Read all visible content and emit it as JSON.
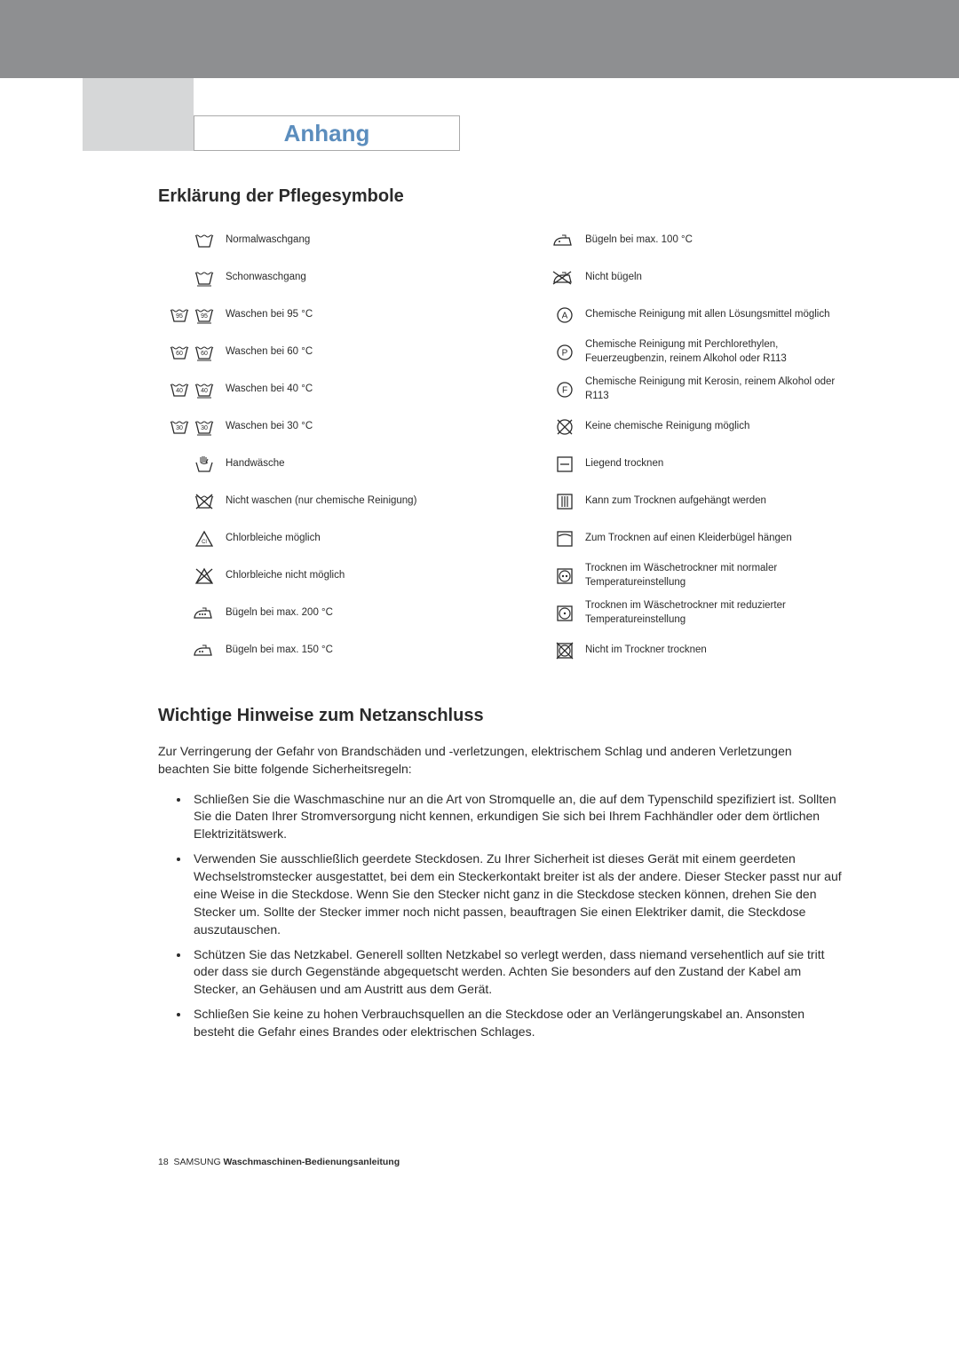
{
  "colors": {
    "top_bar_bg": "#8e8f91",
    "sidebar_bg": "#d6d7d8",
    "title_color": "#5b8dbd",
    "text_color": "#2b2b2b",
    "icon_stroke": "#2b2b2b",
    "background": "#ffffff"
  },
  "typography": {
    "title_fontsize": 26,
    "heading_fontsize": 20,
    "body_fontsize": 14,
    "label_fontsize": 11.5,
    "footer_fontsize": 10.5
  },
  "title": "Anhang",
  "section1_heading": "Erklärung der Pflegesymbole",
  "left_symbols": [
    {
      "icon": "wash-normal",
      "label": "Normalwaschgang"
    },
    {
      "icon": "wash-gentle",
      "label": "Schonwaschgang"
    },
    {
      "icon": "wash-95",
      "label": "Waschen bei 95 °C"
    },
    {
      "icon": "wash-60",
      "label": "Waschen bei 60 °C"
    },
    {
      "icon": "wash-40",
      "label": "Waschen bei 40 °C"
    },
    {
      "icon": "wash-30",
      "label": "Waschen bei 30 °C"
    },
    {
      "icon": "hand-wash",
      "label": "Handwäsche"
    },
    {
      "icon": "no-wash",
      "label": "Nicht waschen (nur chemische Reinigung)"
    },
    {
      "icon": "bleach-ok",
      "label": "Chlorbleiche möglich"
    },
    {
      "icon": "no-bleach",
      "label": "Chlorbleiche nicht möglich"
    },
    {
      "icon": "iron-200",
      "label": "Bügeln bei max. 200 °C"
    },
    {
      "icon": "iron-150",
      "label": "Bügeln bei max. 150 °C"
    }
  ],
  "right_symbols": [
    {
      "icon": "iron-100",
      "label": "Bügeln bei max. 100 °C"
    },
    {
      "icon": "no-iron",
      "label": "Nicht bügeln"
    },
    {
      "icon": "dry-clean-a",
      "label": "Chemische Reinigung mit allen Lösungsmittel möglich"
    },
    {
      "icon": "dry-clean-p",
      "label": "Chemische Reinigung mit Perchlorethylen, Feuerzeugbenzin, reinem Alkohol oder R113"
    },
    {
      "icon": "dry-clean-f",
      "label": "Chemische Reinigung mit Kerosin, reinem Alkohol oder R113"
    },
    {
      "icon": "no-dry-clean",
      "label": "Keine chemische Reinigung möglich"
    },
    {
      "icon": "dry-flat",
      "label": "Liegend trocknen"
    },
    {
      "icon": "dry-hang",
      "label": "Kann zum Trocknen aufgehängt werden"
    },
    {
      "icon": "dry-hanger",
      "label": "Zum Trocknen auf einen Kleiderbügel hängen"
    },
    {
      "icon": "tumble-normal",
      "label": "Trocknen im Wäschetrockner mit normaler Temperatureinstellung"
    },
    {
      "icon": "tumble-low",
      "label": "Trocknen im Wäschetrockner mit reduzierter Temperatureinstellung"
    },
    {
      "icon": "no-tumble",
      "label": "Nicht im Trockner trocknen"
    }
  ],
  "section2_heading": "Wichtige Hinweise zum Netzanschluss",
  "intro_text": "Zur Verringerung der Gefahr von Brandschäden und -verletzungen, elektrischem Schlag und anderen Verletzungen beachten Sie bitte folgende Sicherheitsregeln:",
  "bullets": [
    "Schließen Sie die Waschmaschine nur an die Art von Stromquelle an, die auf dem Typenschild spezifiziert ist.  Sollten Sie die Daten Ihrer Stromversorgung nicht kennen, erkundigen Sie sich bei Ihrem Fachhändler oder dem örtlichen Elektrizitätswerk.",
    "Verwenden Sie ausschließlich geerdete Steckdosen.  Zu Ihrer Sicherheit ist dieses Gerät mit einem geerdeten Wechselstromstecker ausgestattet, bei dem ein Steckerkontakt breiter ist als der andere.  Dieser Stecker passt nur auf eine Weise in die Steckdose.  Wenn Sie den Stecker nicht ganz in die Steckdose stecken können, drehen Sie den Stecker um.  Sollte der Stecker immer noch nicht passen, beauftragen Sie einen Elektriker damit, die Steckdose auszutauschen.",
    "Schützen Sie das Netzkabel. Generell sollten Netzkabel so verlegt werden, dass niemand versehentlich auf sie tritt oder dass sie durch Gegenstände abgequetscht werden.  Achten Sie besonders auf den Zustand der Kabel am Stecker, an Gehäusen und am Austritt aus dem Gerät.",
    "Schließen Sie keine zu hohen Verbrauchsquellen an die Steckdose oder an Verlängerungskabel an.  Ansonsten besteht die Gefahr eines Brandes oder elektrischen Schlages."
  ],
  "footer": {
    "page": "18",
    "brand": "SAMSUNG",
    "doc": "Waschmaschinen-Bedienungsanleitung"
  }
}
